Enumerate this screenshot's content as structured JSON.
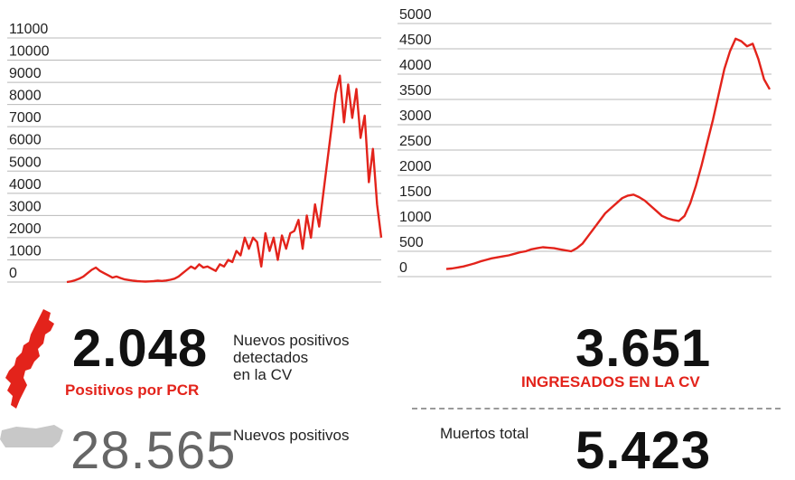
{
  "chart_data": [
    {
      "type": "line",
      "y_ticks": [
        "0",
        "1000",
        "2000",
        "3000",
        "4000",
        "5000",
        "6000",
        "7000",
        "8000",
        "9000",
        "10000",
        "11000"
      ],
      "ylim": [
        0,
        11000
      ],
      "grid": true,
      "series": [
        {
          "values": [
            0,
            30,
            80,
            150,
            250,
            400,
            550,
            650,
            500,
            400,
            300,
            200,
            250,
            180,
            120,
            90,
            60,
            40,
            30,
            20,
            30,
            40,
            60,
            50,
            70,
            100,
            150,
            250,
            400,
            550,
            700,
            600,
            800,
            650,
            700,
            600,
            500,
            800,
            700,
            1000,
            900,
            1400,
            1200,
            2000,
            1500,
            2000,
            1800,
            700,
            2200,
            1400,
            2000,
            1000,
            2100,
            1500,
            2200,
            2300,
            2800,
            1500,
            3000,
            2000,
            3500,
            2500,
            4000,
            5500,
            7000,
            8500,
            9300,
            7200,
            8900,
            7400,
            8700,
            6500,
            7500,
            4500,
            6000,
            3500,
            2000
          ]
        }
      ]
    },
    {
      "type": "line",
      "y_ticks": [
        "0",
        "500",
        "1000",
        "1500",
        "2000",
        "2500",
        "3000",
        "3500",
        "4000",
        "4500",
        "5000"
      ],
      "ylim": [
        0,
        5000
      ],
      "grid": true,
      "series": [
        {
          "values": [
            150,
            160,
            180,
            200,
            230,
            260,
            300,
            330,
            360,
            380,
            400,
            420,
            450,
            480,
            500,
            540,
            560,
            580,
            570,
            560,
            540,
            520,
            500,
            560,
            650,
            800,
            950,
            1100,
            1250,
            1350,
            1450,
            1550,
            1600,
            1620,
            1570,
            1500,
            1400,
            1300,
            1200,
            1150,
            1120,
            1100,
            1200,
            1450,
            1800,
            2200,
            2650,
            3100,
            3600,
            4100,
            4450,
            4700,
            4650,
            4550,
            4600,
            4300,
            3900,
            3700
          ]
        }
      ]
    }
  ],
  "stats": {
    "pcr": {
      "number": "2.048",
      "label": "Positivos por PCR",
      "desc": "Nuevos positivos\ndetectados\nen la CV"
    },
    "ingresados": {
      "number": "3.651",
      "label": "INGRESADOS EN LA CV"
    },
    "bottom_left": {
      "number": "28.565",
      "desc": "Nuevos positivos"
    },
    "bottom_right": {
      "number": "5.423",
      "desc": "Muertos total"
    }
  },
  "colors": {
    "accent": "#e3231b",
    "grid": "#b8b8b8",
    "map_grey": "#c8c8c8"
  }
}
